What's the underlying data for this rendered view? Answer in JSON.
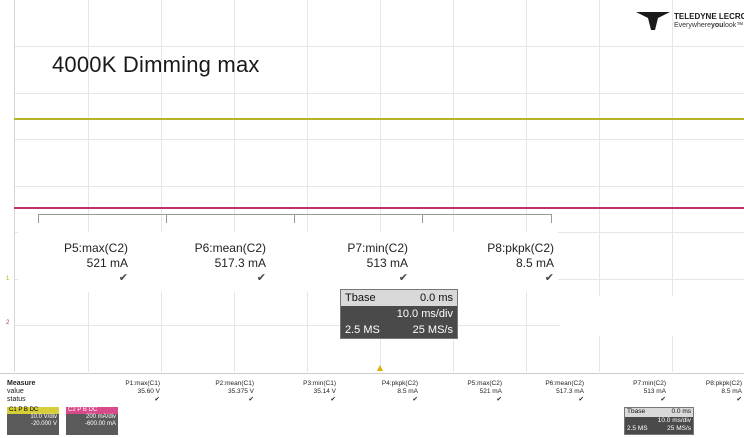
{
  "caption": "4000K Dimming max",
  "logo": {
    "name": "TELEDYNE LECROY",
    "tag_prefix": "Everywhere",
    "tag_bold": "you",
    "tag_suffix": "look",
    "tag_tm": "™"
  },
  "colors": {
    "ch1": "#b6b22a",
    "ch2": "#c0306a",
    "panel": "#4a4a4a"
  },
  "big_measurements": [
    {
      "label": "P5:max(C2)",
      "value": "521 mA",
      "status": "✔"
    },
    {
      "label": "P6:mean(C2)",
      "value": "517.3 mA",
      "status": "✔"
    },
    {
      "label": "P7:min(C2)",
      "value": "513 mA",
      "status": "✔"
    },
    {
      "label": "P8:pkpk(C2)",
      "value": "8.5 mA",
      "status": "✔"
    }
  ],
  "timebase": {
    "label": "Tbase",
    "offset": "0.0 ms",
    "div": "10.0 ms/div",
    "samples": "2.5 MS",
    "rate": "25 MS/s"
  },
  "bottom": {
    "row_labels": [
      "Measure",
      "value",
      "status"
    ],
    "measurements": [
      {
        "label": "P1:max(C1)",
        "value": "35.60 V",
        "status": "✔"
      },
      {
        "label": "P2:mean(C1)",
        "value": "35.375 V",
        "status": "✔"
      },
      {
        "label": "P3:min(C1)",
        "value": "35.14 V",
        "status": "✔"
      },
      {
        "label": "P4:pkpk(C2)",
        "value": "8.5 mA",
        "status": "✔"
      },
      {
        "label": "P5:max(C2)",
        "value": "521 mA",
        "status": "✔"
      },
      {
        "label": "P6:mean(C2)",
        "value": "517.3 mA",
        "status": "✔"
      },
      {
        "label": "P7:min(C2)",
        "value": "513 mA",
        "status": "✔"
      },
      {
        "label": "P8:pkpk(C2)",
        "value": "8.5 mA",
        "status": "✔"
      }
    ],
    "channels": [
      {
        "name": "C1",
        "badge": "P B DC",
        "scale": "10.0 V/div",
        "offset": "-20.000 V"
      },
      {
        "name": "C2",
        "badge": "P B DC",
        "scale": "200 mA/div",
        "offset": "-600.00 mA"
      }
    ],
    "timebase": {
      "label": "Tbase",
      "offset": "0.0 ms",
      "div": "10.0 ms/div",
      "samples": "2.5 MS",
      "rate": "25 MS/s"
    }
  },
  "markers": {
    "ch1": "1",
    "ch2": "2"
  }
}
